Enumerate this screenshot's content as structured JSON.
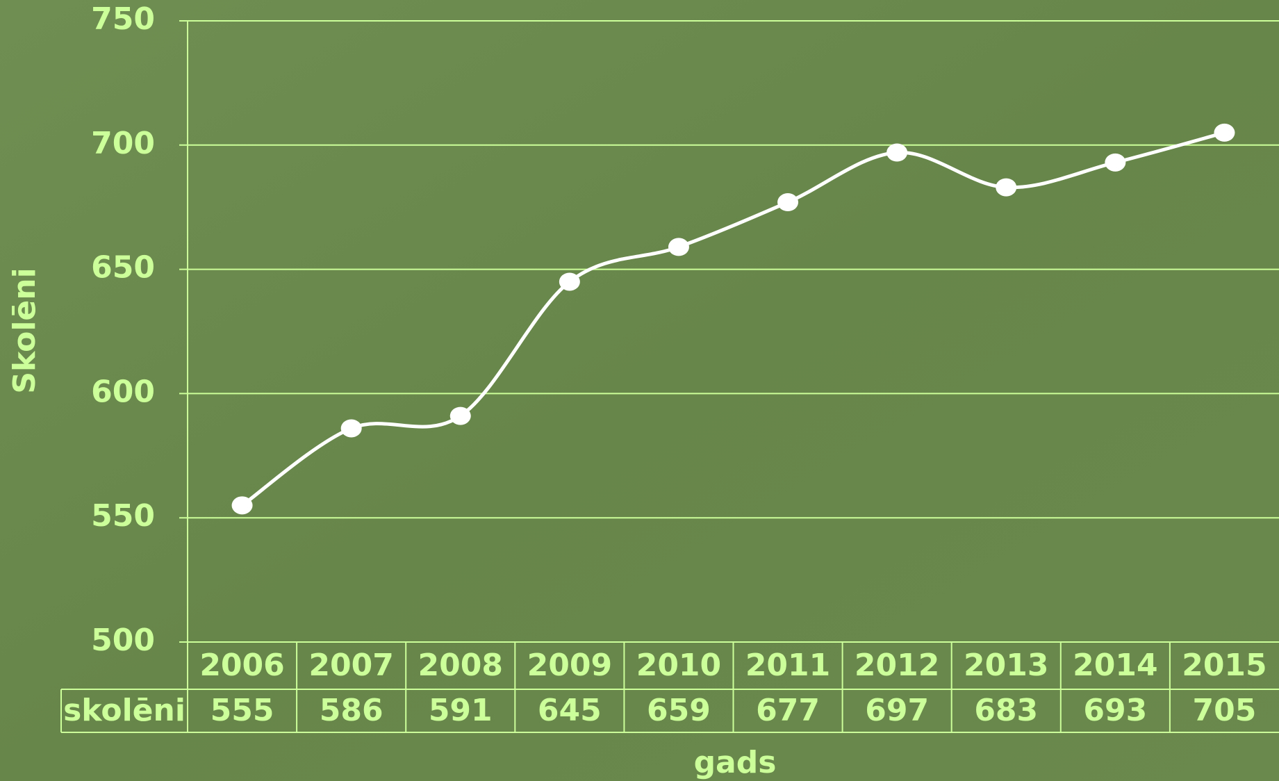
{
  "chart_data": {
    "type": "line",
    "y_label": "Skolēni",
    "x_label": "gads",
    "categories": [
      "2006",
      "2007",
      "2008",
      "2009",
      "2010",
      "2011",
      "2012",
      "2013",
      "2014",
      "2015"
    ],
    "series": [
      {
        "name": "skolēni",
        "color": "#ffffff",
        "values": [
          555,
          586,
          591,
          645,
          659,
          677,
          697,
          683,
          693,
          705
        ]
      }
    ],
    "ylim": [
      500,
      750
    ],
    "yticks": [
      500,
      550,
      600,
      650,
      700,
      750
    ],
    "grid": true,
    "smooth": true
  }
}
